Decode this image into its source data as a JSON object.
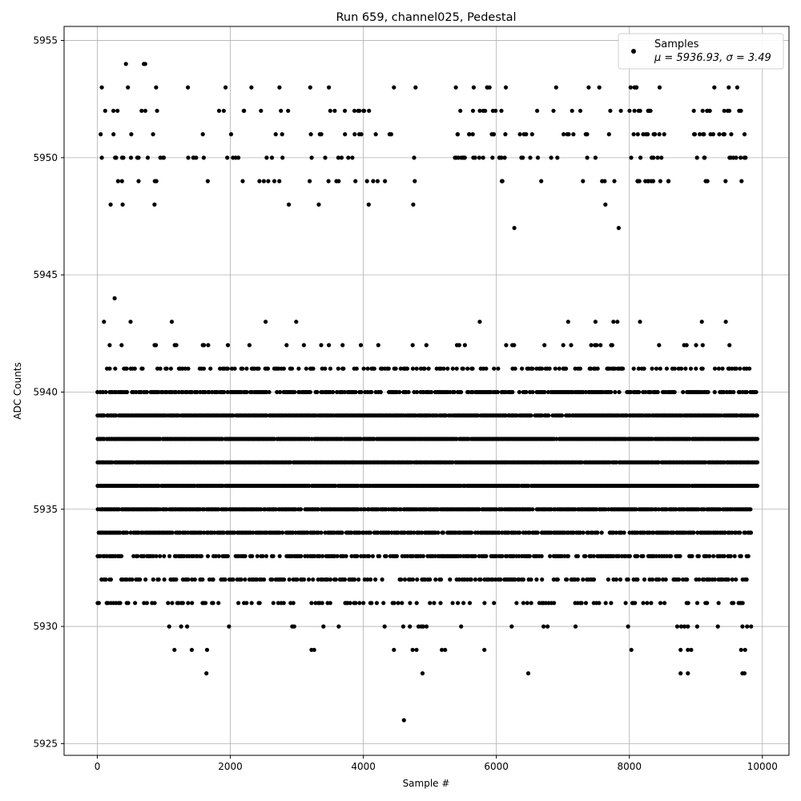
{
  "chart_data": {
    "type": "scatter",
    "title": "Run 659, channel025, Pedestal",
    "xlabel": "Sample #",
    "ylabel": "ADC Counts",
    "xlim": [
      -500,
      10400
    ],
    "ylim": [
      5924.5,
      5955.6
    ],
    "xticks": [
      0,
      2000,
      4000,
      6000,
      8000,
      10000
    ],
    "xtick_labels": [
      "0",
      "2000",
      "4000",
      "6000",
      "8000",
      "10000"
    ],
    "yticks": [
      5925,
      5930,
      5935,
      5940,
      5945,
      5950,
      5955
    ],
    "ytick_labels": [
      "5925",
      "5930",
      "5935",
      "5940",
      "5945",
      "5950",
      "5955"
    ],
    "grid": true,
    "legend_position": "top-right",
    "marker_color": "#000000",
    "series": [
      {
        "name": "Samples",
        "stats_label": "μ = 5936.93, σ = 3.49",
        "dense_levels": [
          {
            "y": 5941,
            "x_range": [
              0,
              9800
            ],
            "density": 0.35
          },
          {
            "y": 5940,
            "x_range": [
              0,
              9930
            ],
            "density": 0.65
          },
          {
            "y": 5939,
            "x_range": [
              0,
              9930
            ],
            "density": 0.92
          },
          {
            "y": 5938,
            "x_range": [
              0,
              9930
            ],
            "density": 0.97
          },
          {
            "y": 5937,
            "x_range": [
              0,
              9930
            ],
            "density": 0.98
          },
          {
            "y": 5936,
            "x_range": [
              0,
              9930
            ],
            "density": 0.98
          },
          {
            "y": 5935,
            "x_range": [
              0,
              9830
            ],
            "density": 0.9
          },
          {
            "y": 5934,
            "x_range": [
              0,
              9830
            ],
            "density": 0.75
          },
          {
            "y": 5933,
            "x_range": [
              0,
              9830
            ],
            "density": 0.55
          },
          {
            "y": 5932,
            "x_range": [
              0,
              9830
            ],
            "density": 0.38
          },
          {
            "y": 5931,
            "x_range": [
              0,
              9830
            ],
            "density": 0.22
          },
          {
            "y": 5942,
            "x_range": [
              0,
              9500
            ],
            "density": 0.12
          }
        ],
        "sparse_points": [
          [
            430,
            5954
          ],
          [
            700,
            5954
          ],
          [
            720,
            5954
          ],
          [
            200,
            5948
          ],
          [
            380,
            5948
          ],
          [
            860,
            5948
          ],
          [
            3330,
            5948
          ],
          [
            2880,
            5948
          ],
          [
            4080,
            5948
          ],
          [
            4750,
            5948
          ],
          [
            7640,
            5948
          ],
          [
            6270,
            5947
          ],
          [
            7840,
            5947
          ],
          [
            260,
            5944
          ],
          [
            100,
            5943
          ],
          [
            500,
            5943
          ],
          [
            1120,
            5943
          ],
          [
            2530,
            5943
          ],
          [
            2990,
            5943
          ],
          [
            5750,
            5943
          ],
          [
            7080,
            5943
          ],
          [
            7490,
            5943
          ],
          [
            7760,
            5943
          ],
          [
            7820,
            5943
          ],
          [
            8160,
            5943
          ],
          [
            9090,
            5943
          ],
          [
            9450,
            5943
          ],
          [
            1080,
            5930
          ],
          [
            1260,
            5930
          ],
          [
            1350,
            5930
          ],
          [
            1980,
            5930
          ],
          [
            2930,
            5930
          ],
          [
            2960,
            5930
          ],
          [
            3400,
            5930
          ],
          [
            3630,
            5930
          ],
          [
            4320,
            5930
          ],
          [
            4600,
            5930
          ],
          [
            4700,
            5930
          ],
          [
            4830,
            5930
          ],
          [
            4870,
            5930
          ],
          [
            4900,
            5930
          ],
          [
            4950,
            5930
          ],
          [
            5470,
            5930
          ],
          [
            6230,
            5930
          ],
          [
            6710,
            5930
          ],
          [
            6770,
            5930
          ],
          [
            7190,
            5930
          ],
          [
            7980,
            5930
          ],
          [
            8720,
            5930
          ],
          [
            8780,
            5930
          ],
          [
            8830,
            5930
          ],
          [
            8880,
            5930
          ],
          [
            9020,
            5930
          ],
          [
            9330,
            5930
          ],
          [
            9700,
            5930
          ],
          [
            9770,
            5930
          ],
          [
            9830,
            5930
          ],
          [
            1160,
            5929
          ],
          [
            1420,
            5929
          ],
          [
            1650,
            5929
          ],
          [
            3220,
            5929
          ],
          [
            3260,
            5929
          ],
          [
            4460,
            5929
          ],
          [
            4740,
            5929
          ],
          [
            4800,
            5929
          ],
          [
            5180,
            5929
          ],
          [
            5230,
            5929
          ],
          [
            5820,
            5929
          ],
          [
            8030,
            5929
          ],
          [
            8770,
            5929
          ],
          [
            8880,
            5929
          ],
          [
            8930,
            5929
          ],
          [
            9680,
            5929
          ],
          [
            9740,
            5929
          ],
          [
            1640,
            5928
          ],
          [
            4890,
            5928
          ],
          [
            6480,
            5928
          ],
          [
            8770,
            5928
          ],
          [
            8880,
            5928
          ],
          [
            9700,
            5928
          ],
          [
            9730,
            5928
          ],
          [
            4610,
            5926
          ]
        ],
        "upper_band": {
          "y_levels": [
            5949,
            5950,
            5951,
            5952,
            5953
          ],
          "counts": [
            45,
            75,
            60,
            55,
            28
          ],
          "clusters": [
            [
              0,
              1000
            ],
            [
              1300,
              2900
            ],
            [
              3100,
              4800
            ],
            [
              5350,
              6150
            ],
            [
              6350,
              7900
            ],
            [
              8000,
              8600
            ],
            [
              8950,
              9750
            ]
          ]
        }
      }
    ]
  }
}
